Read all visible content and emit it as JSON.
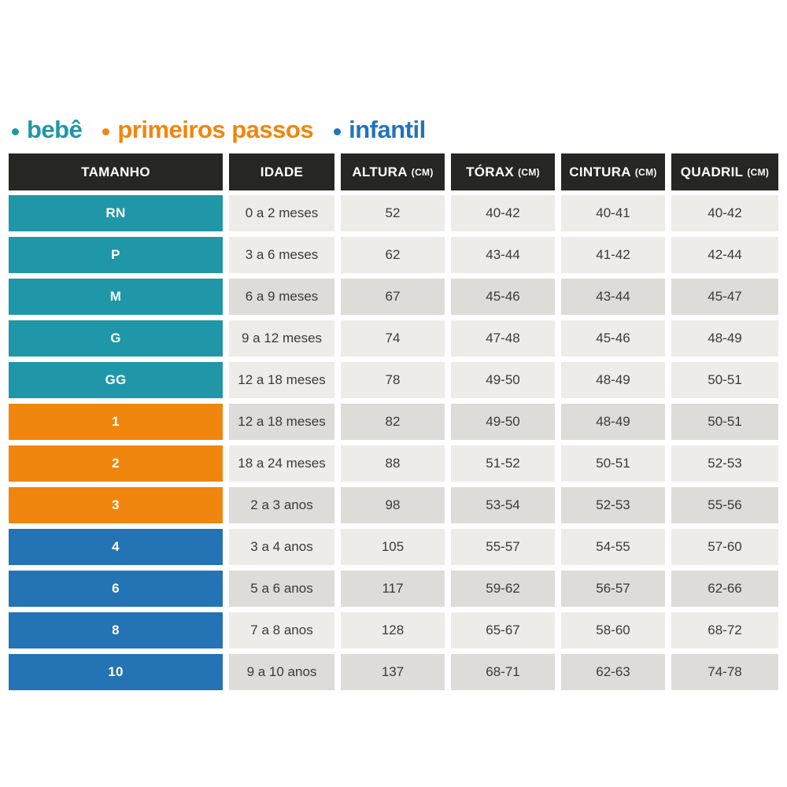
{
  "chart_data": {
    "type": "table",
    "legend": {
      "position": "top",
      "items": [
        {
          "label": "bebê",
          "group": "bebe",
          "color": "#1F97A8"
        },
        {
          "label": "primeiros passos",
          "group": "primeiros-passos",
          "color": "#F0860D"
        },
        {
          "label": "infantil",
          "group": "infantil",
          "color": "#2173BC"
        }
      ]
    },
    "columns": [
      {
        "label": "TAMANHO",
        "unit": ""
      },
      {
        "label": "IDADE",
        "unit": ""
      },
      {
        "label": "ALTURA",
        "unit": "(CM)"
      },
      {
        "label": "TÓRAX",
        "unit": "(CM)"
      },
      {
        "label": "CINTURA",
        "unit": "(CM)"
      },
      {
        "label": "QUADRIL",
        "unit": "(CM)"
      }
    ],
    "rows": [
      {
        "size": "RN",
        "group": "bebe",
        "shade": "light",
        "idade": "0 a 2 meses",
        "altura": "52",
        "torax": "40-42",
        "cintura": "40-41",
        "quadril": "40-42"
      },
      {
        "size": "P",
        "group": "bebe",
        "shade": "light",
        "idade": "3 a 6 meses",
        "altura": "62",
        "torax": "43-44",
        "cintura": "41-42",
        "quadril": "42-44"
      },
      {
        "size": "M",
        "group": "bebe",
        "shade": "dark",
        "idade": "6 a 9 meses",
        "altura": "67",
        "torax": "45-46",
        "cintura": "43-44",
        "quadril": "45-47"
      },
      {
        "size": "G",
        "group": "bebe",
        "shade": "light",
        "idade": "9 a 12 meses",
        "altura": "74",
        "torax": "47-48",
        "cintura": "45-46",
        "quadril": "48-49"
      },
      {
        "size": "GG",
        "group": "bebe",
        "shade": "light",
        "idade": "12 a 18 meses",
        "altura": "78",
        "torax": "49-50",
        "cintura": "48-49",
        "quadril": "50-51"
      },
      {
        "size": "1",
        "group": "primeiros-passos",
        "shade": "dark",
        "idade": "12 a 18 meses",
        "altura": "82",
        "torax": "49-50",
        "cintura": "48-49",
        "quadril": "50-51"
      },
      {
        "size": "2",
        "group": "primeiros-passos",
        "shade": "light",
        "idade": "18 a 24 meses",
        "altura": "88",
        "torax": "51-52",
        "cintura": "50-51",
        "quadril": "52-53"
      },
      {
        "size": "3",
        "group": "primeiros-passos",
        "shade": "dark",
        "idade": "2 a 3 anos",
        "altura": "98",
        "torax": "53-54",
        "cintura": "52-53",
        "quadril": "55-56"
      },
      {
        "size": "4",
        "group": "infantil",
        "shade": "light",
        "idade": "3 a 4 anos",
        "altura": "105",
        "torax": "55-57",
        "cintura": "54-55",
        "quadril": "57-60"
      },
      {
        "size": "6",
        "group": "infantil",
        "shade": "dark",
        "idade": "5 a 6 anos",
        "altura": "117",
        "torax": "59-62",
        "cintura": "56-57",
        "quadril": "62-66"
      },
      {
        "size": "8",
        "group": "infantil",
        "shade": "light",
        "idade": "7 a 8 anos",
        "altura": "128",
        "torax": "65-67",
        "cintura": "58-60",
        "quadril": "68-72"
      },
      {
        "size": "10",
        "group": "infantil",
        "shade": "dark",
        "idade": "9 a 10 anos",
        "altura": "137",
        "torax": "68-71",
        "cintura": "62-63",
        "quadril": "74-78"
      }
    ]
  },
  "colors": {
    "page_bg": "#FFFFFF",
    "header_bg": "#262625",
    "header_text": "#FFFFFF",
    "group_bebe": "#1F97A8",
    "group_primeiros_passos": "#F0860D",
    "group_infantil": "#2473B4",
    "cell_light": "#EDECE9",
    "cell_dark": "#DEDCD9",
    "cell_text": "#3A3A3A"
  }
}
